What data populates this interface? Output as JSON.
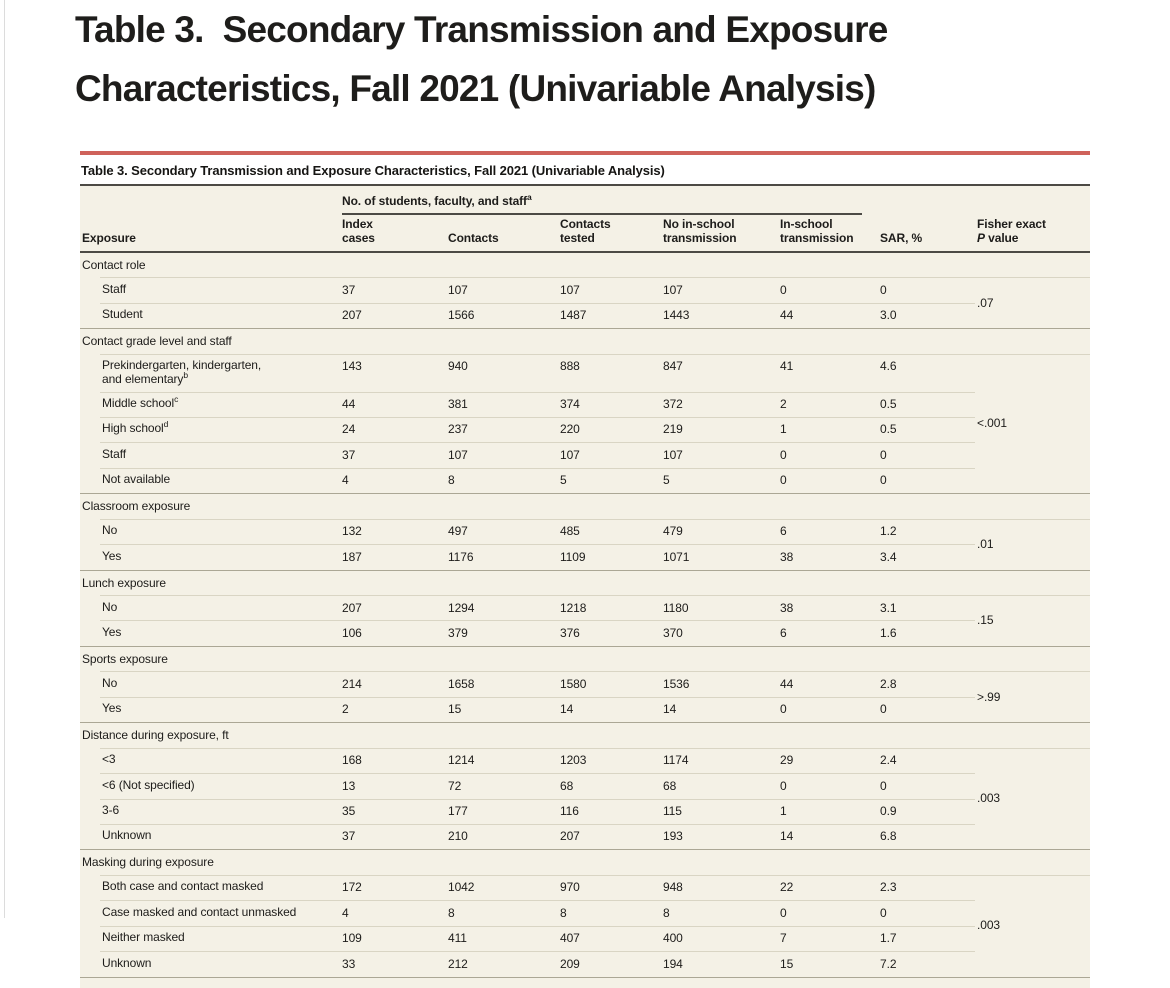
{
  "page_heading": "Table 3.  Secondary Transmission and Exposure\nCharacteristics, Fall 2021 (Univariable Analysis)",
  "colors": {
    "accent_red": "#cf625b",
    "table_bg": "#f4f1e6",
    "rule_dark": "#4c4a45",
    "row_line": "#d9d5c4",
    "section_line": "#aba795",
    "text": "#1d1c1a",
    "page_bg": "#ffffff",
    "window_edge": "#dcdcdc"
  },
  "table": {
    "title": "Table 3. Secondary Transmission and Exposure Characteristics, Fall 2021 (Univariable Analysis)",
    "spanner_label": "No. of students, faculty, and staff^a",
    "headers": [
      {
        "id": "exposure",
        "lines": [
          "Exposure"
        ]
      },
      {
        "id": "index-cases",
        "lines": [
          "Index",
          "cases"
        ]
      },
      {
        "id": "contacts",
        "lines": [
          "Contacts"
        ]
      },
      {
        "id": "contacts-tested",
        "lines": [
          "Contacts",
          "tested"
        ]
      },
      {
        "id": "no-in-school-transmission",
        "lines": [
          "No in-school",
          "transmission"
        ]
      },
      {
        "id": "in-school-transmission",
        "lines": [
          "In-school",
          "transmission"
        ]
      },
      {
        "id": "sar-pct",
        "lines": [
          "SAR, %"
        ]
      },
      {
        "id": "fisher-exact-p-value",
        "lines": [
          "Fisher exact",
          "*P* value"
        ]
      }
    ],
    "sections": [
      {
        "label": "Contact role",
        "p_value": ".07",
        "rows": [
          {
            "label": "Staff",
            "values": [
              "37",
              "107",
              "107",
              "107",
              "0",
              "0"
            ]
          },
          {
            "label": "Student",
            "values": [
              "207",
              "1566",
              "1487",
              "1443",
              "44",
              "3.0"
            ]
          }
        ]
      },
      {
        "label": "Contact grade level and staff",
        "p_value": "<.001",
        "rows": [
          {
            "label": "Prekindergarten, kindergarten,\nand elementary^b",
            "values": [
              "143",
              "940",
              "888",
              "847",
              "41",
              "4.6"
            ]
          },
          {
            "label": "Middle school^c",
            "values": [
              "44",
              "381",
              "374",
              "372",
              "2",
              "0.5"
            ]
          },
          {
            "label": "High school^d",
            "values": [
              "24",
              "237",
              "220",
              "219",
              "1",
              "0.5"
            ]
          },
          {
            "label": "Staff",
            "values": [
              "37",
              "107",
              "107",
              "107",
              "0",
              "0"
            ]
          },
          {
            "label": "Not available",
            "values": [
              "4",
              "8",
              "5",
              "5",
              "0",
              "0"
            ]
          }
        ]
      },
      {
        "label": "Classroom exposure",
        "p_value": ".01",
        "rows": [
          {
            "label": "No",
            "values": [
              "132",
              "497",
              "485",
              "479",
              "6",
              "1.2"
            ]
          },
          {
            "label": "Yes",
            "values": [
              "187",
              "1176",
              "1109",
              "1071",
              "38",
              "3.4"
            ]
          }
        ]
      },
      {
        "label": "Lunch exposure",
        "p_value": ".15",
        "rows": [
          {
            "label": "No",
            "values": [
              "207",
              "1294",
              "1218",
              "1180",
              "38",
              "3.1"
            ]
          },
          {
            "label": "Yes",
            "values": [
              "106",
              "379",
              "376",
              "370",
              "6",
              "1.6"
            ]
          }
        ]
      },
      {
        "label": "Sports exposure",
        "p_value": ">.99",
        "rows": [
          {
            "label": "No",
            "values": [
              "214",
              "1658",
              "1580",
              "1536",
              "44",
              "2.8"
            ]
          },
          {
            "label": "Yes",
            "values": [
              "2",
              "15",
              "14",
              "14",
              "0",
              "0"
            ]
          }
        ]
      },
      {
        "label": "Distance during exposure, ft",
        "p_value": ".003",
        "rows": [
          {
            "label": "<3",
            "values": [
              "168",
              "1214",
              "1203",
              "1174",
              "29",
              "2.4"
            ]
          },
          {
            "label": "<6 (Not specified)",
            "values": [
              "13",
              "72",
              "68",
              "68",
              "0",
              "0"
            ]
          },
          {
            "label": "3-6",
            "values": [
              "35",
              "177",
              "116",
              "115",
              "1",
              "0.9"
            ]
          },
          {
            "label": "Unknown",
            "values": [
              "37",
              "210",
              "207",
              "193",
              "14",
              "6.8"
            ]
          }
        ]
      },
      {
        "label": "Masking during exposure",
        "p_value": ".003",
        "rows": [
          {
            "label": "Both case and contact masked",
            "values": [
              "172",
              "1042",
              "970",
              "948",
              "22",
              "2.3"
            ]
          },
          {
            "label": "Case masked and contact unmasked",
            "values": [
              "4",
              "8",
              "8",
              "8",
              "0",
              "0"
            ]
          },
          {
            "label": "Neither masked",
            "values": [
              "109",
              "411",
              "407",
              "400",
              "7",
              "1.7"
            ]
          },
          {
            "label": "Unknown",
            "values": [
              "33",
              "212",
              "209",
              "194",
              "15",
              "7.2"
            ]
          }
        ]
      }
    ]
  }
}
